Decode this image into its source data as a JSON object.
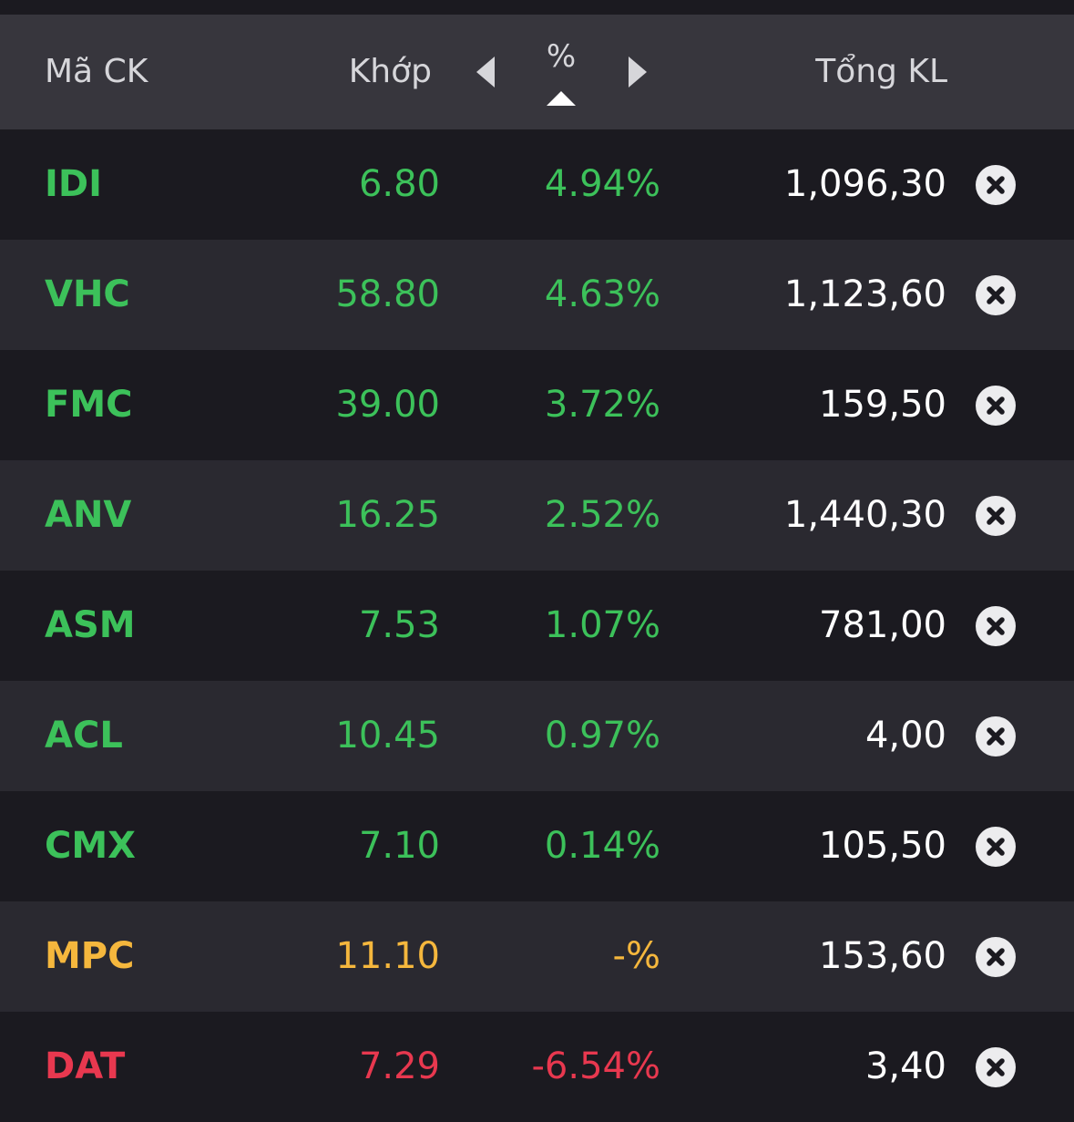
{
  "header": {
    "symbol_label": "Mã CK",
    "price_label": "Khớp",
    "percent_label": "%",
    "volume_label": "Tổng KL",
    "nav_prev_icon": "caret-left-icon",
    "nav_next_icon": "caret-right-icon",
    "sort_icon": "sort-ascending-icon"
  },
  "colors": {
    "up": "#3cc15a",
    "reference": "#f5b73d",
    "down": "#e8384f",
    "header_bg": "#37363d",
    "row_bg": "#1b1a20",
    "row_alt_bg": "#2a2930"
  },
  "rows": [
    {
      "symbol": "IDI",
      "price": "6.80",
      "percent": "4.94%",
      "volume": "1,096,30",
      "trend": "up",
      "remove_icon": "close-circle-icon"
    },
    {
      "symbol": "VHC",
      "price": "58.80",
      "percent": "4.63%",
      "volume": "1,123,60",
      "trend": "up",
      "remove_icon": "close-circle-icon"
    },
    {
      "symbol": "FMC",
      "price": "39.00",
      "percent": "3.72%",
      "volume": "159,50",
      "trend": "up",
      "remove_icon": "close-circle-icon"
    },
    {
      "symbol": "ANV",
      "price": "16.25",
      "percent": "2.52%",
      "volume": "1,440,30",
      "trend": "up",
      "remove_icon": "close-circle-icon"
    },
    {
      "symbol": "ASM",
      "price": "7.53",
      "percent": "1.07%",
      "volume": "781,00",
      "trend": "up",
      "remove_icon": "close-circle-icon"
    },
    {
      "symbol": "ACL",
      "price": "10.45",
      "percent": "0.97%",
      "volume": "4,00",
      "trend": "up",
      "remove_icon": "close-circle-icon"
    },
    {
      "symbol": "CMX",
      "price": "7.10",
      "percent": "0.14%",
      "volume": "105,50",
      "trend": "up",
      "remove_icon": "close-circle-icon"
    },
    {
      "symbol": "MPC",
      "price": "11.10",
      "percent": "-%",
      "volume": "153,60",
      "trend": "ref",
      "remove_icon": "close-circle-icon"
    },
    {
      "symbol": "DAT",
      "price": "7.29",
      "percent": "-6.54%",
      "volume": "3,40",
      "trend": "down",
      "remove_icon": "close-circle-icon"
    }
  ]
}
